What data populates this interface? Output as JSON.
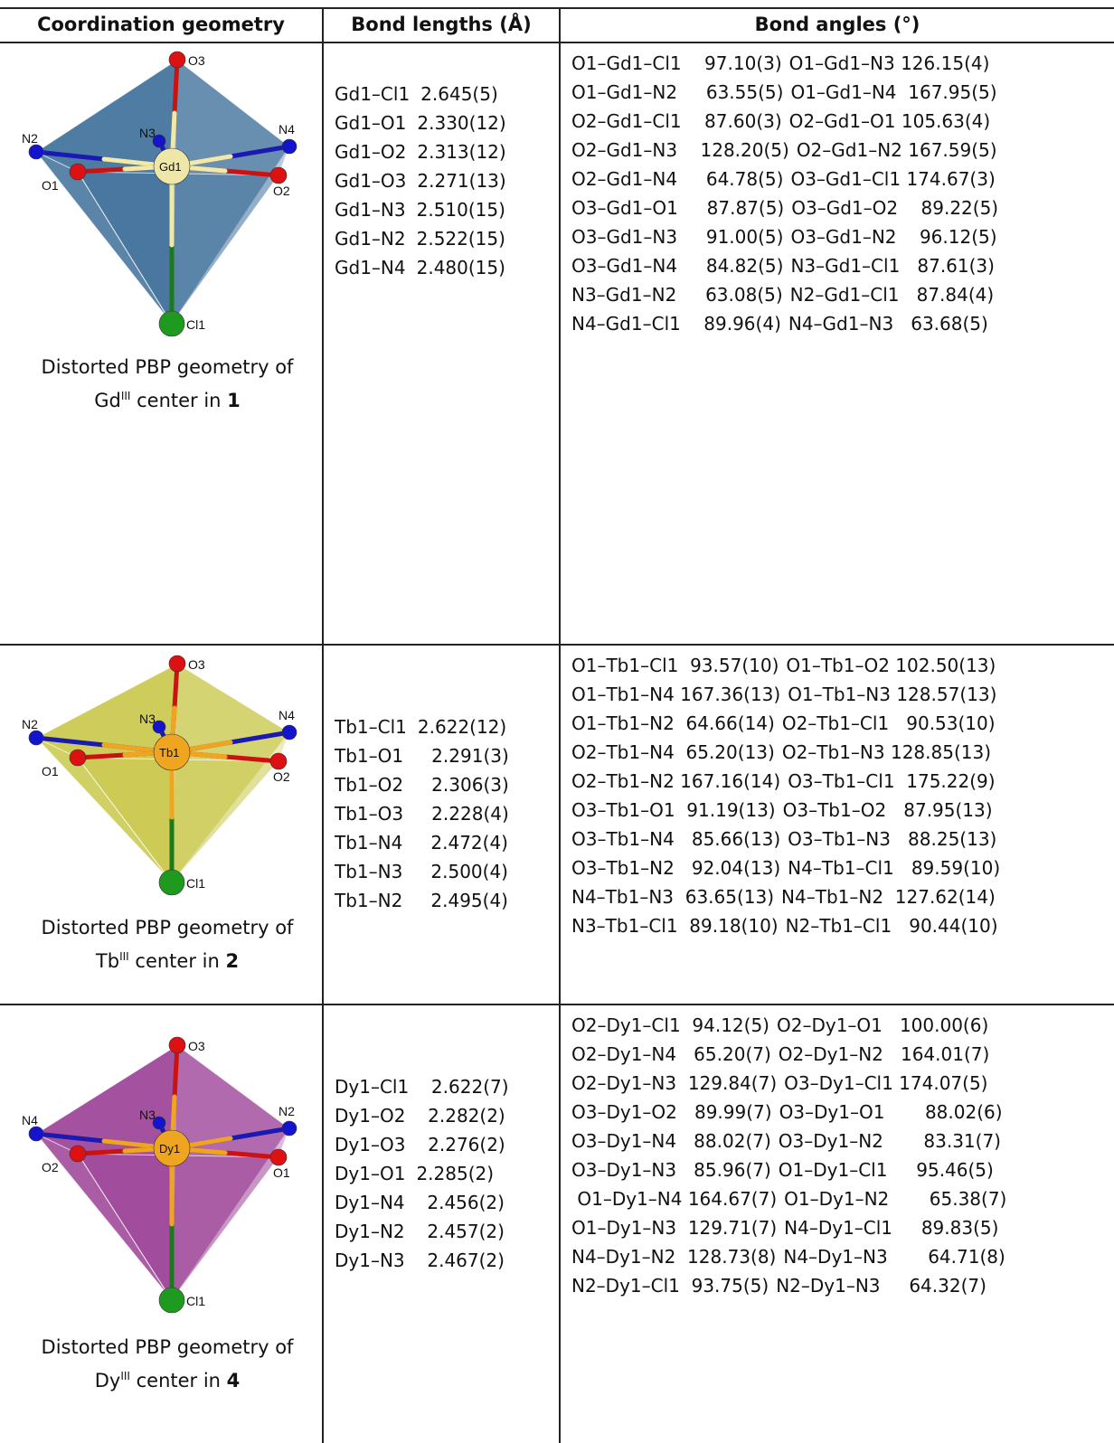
{
  "headers": {
    "coordination_geometry": "Coordination geometry",
    "bond_lengths": "Bond lengths (Å)",
    "bond_angles": "Bond angles (°)"
  },
  "rows": [
    {
      "caption_line1": "Distorted PBP geometry of",
      "caption_metal": "Gd",
      "caption_sup": "III",
      "caption_mid": " center in ",
      "caption_compound": "1",
      "figure": {
        "center_label": "Gd1",
        "poly_color": "#3d6e99",
        "center_color": "#efe7a8",
        "bond_color": "#f2e9a6",
        "labels": {
          "top": "O3",
          "bottom": "Cl1",
          "left_n": "N2",
          "mid_n": "N3",
          "right_n": "N4",
          "left_o": "O1",
          "right_o": "O2"
        }
      },
      "bond_lengths": [
        {
          "bond": "Gd1–Cl1",
          "value": "2.645(5)"
        },
        {
          "bond": "Gd1–O1",
          "value": "2.330(12)"
        },
        {
          "bond": "Gd1–O2",
          "value": "2.313(12)"
        },
        {
          "bond": "Gd1–O3",
          "value": "2.271(13)"
        },
        {
          "bond": "Gd1–N3",
          "value": "2.510(15)"
        },
        {
          "bond": "Gd1–N2",
          "value": "2.522(15)"
        },
        {
          "bond": "Gd1–N4",
          "value": "2.480(15)"
        }
      ],
      "bond_angles": [
        {
          "a": "O1–Gd1–Cl1    97.10(3)",
          "b": "O1–Gd1–N3 126.15(4)"
        },
        {
          "a": "O1–Gd1–N2     63.55(5)",
          "b": "O1–Gd1–N4  167.95(5)"
        },
        {
          "a": "O2–Gd1–Cl1    87.60(3)",
          "b": "O2–Gd1–O1 105.63(4)"
        },
        {
          "a": "O2–Gd1–N3    128.20(5)",
          "b": "O2–Gd1–N2 167.59(5)"
        },
        {
          "a": "O2–Gd1–N4     64.78(5)",
          "b": "O3–Gd1–Cl1 174.67(3)"
        },
        {
          "a": "O3–Gd1–O1     87.87(5)",
          "b": "O3–Gd1–O2    89.22(5)"
        },
        {
          "a": "O3–Gd1–N3     91.00(5)",
          "b": "O3–Gd1–N2    96.12(5)"
        },
        {
          "a": "O3–Gd1–N4     84.82(5)",
          "b": "N3–Gd1–Cl1   87.61(3)"
        },
        {
          "a": "N3–Gd1–N2     63.08(5)",
          "b": "N2–Gd1–Cl1   87.84(4)"
        },
        {
          "a": "N4–Gd1–Cl1    89.96(4)",
          "b": "N4–Gd1–N3   63.68(5)"
        }
      ]
    },
    {
      "caption_line1": "Distorted PBP geometry of",
      "caption_metal": "Tb",
      "caption_sup": "III",
      "caption_mid": " center in ",
      "caption_compound": "2",
      "figure": {
        "center_label": "Tb1",
        "poly_color": "#c9c84a",
        "center_color": "#f0a520",
        "bond_color": "#f0a520",
        "labels": {
          "top": "O3",
          "bottom": "Cl1",
          "left_n": "N2",
          "mid_n": "N3",
          "right_n": "N4",
          "left_o": "O1",
          "right_o": "O2"
        }
      },
      "bond_lengths": [
        {
          "bond": "Tb1–Cl1",
          "value": "2.622(12)"
        },
        {
          "bond": "Tb1–O1",
          "value": "   2.291(3)"
        },
        {
          "bond": "Tb1–O2",
          "value": "   2.306(3)"
        },
        {
          "bond": "Tb1–O3",
          "value": "   2.228(4)"
        },
        {
          "bond": "Tb1–N4",
          "value": "   2.472(4)"
        },
        {
          "bond": "Tb1–N3",
          "value": "   2.500(4)"
        },
        {
          "bond": "Tb1–N2",
          "value": "   2.495(4)"
        }
      ],
      "bond_angles": [
        {
          "a": "O1–Tb1–Cl1  93.57(10)",
          "b": "O1–Tb1–O2 102.50(13)"
        },
        {
          "a": "O1–Tb1–N4 167.36(13)",
          "b": "O1–Tb1–N3 128.57(13)"
        },
        {
          "a": "O1–Tb1–N2  64.66(14)",
          "b": "O2–Tb1–Cl1   90.53(10)"
        },
        {
          "a": "O2–Tb1–N4  65.20(13)",
          "b": "O2–Tb1–N3 128.85(13)"
        },
        {
          "a": "O2–Tb1–N2 167.16(14)",
          "b": "O3–Tb1–Cl1  175.22(9)"
        },
        {
          "a": "O3–Tb1–O1  91.19(13)",
          "b": "O3–Tb1–O2   87.95(13)"
        },
        {
          "a": "O3–Tb1–N4   85.66(13)",
          "b": "O3–Tb1–N3   88.25(13)"
        },
        {
          "a": "O3–Tb1–N2   92.04(13)",
          "b": "N4–Tb1–Cl1   89.59(10)"
        },
        {
          "a": "N4–Tb1–N3  63.65(13)",
          "b": "N4–Tb1–N2  127.62(14)"
        },
        {
          "a": "N3–Tb1–Cl1  89.18(10)",
          "b": "N2–Tb1–Cl1   90.44(10)"
        }
      ]
    },
    {
      "caption_line1": "Distorted PBP geometry of",
      "caption_metal": "Dy",
      "caption_sup": "III",
      "caption_mid": " center in ",
      "caption_compound": "4",
      "figure": {
        "center_label": "Dy1",
        "poly_color": "#9b3f95",
        "center_color": "#f0a520",
        "bond_color": "#f0a520",
        "labels": {
          "top": "O3",
          "bottom": "Cl1",
          "left_n": "N4",
          "mid_n": "N3",
          "right_n": "N2",
          "left_o": "O2",
          "right_o": "O1"
        }
      },
      "bond_lengths": [
        {
          "bond": "Dy1–Cl1",
          "value": "  2.622(7)"
        },
        {
          "bond": "Dy1–O2",
          "value": "  2.282(2)"
        },
        {
          "bond": "Dy1–O3",
          "value": "  2.276(2)"
        },
        {
          "bond": "Dy1–O1",
          "value": "2.285(2)"
        },
        {
          "bond": "Dy1–N4",
          "value": "  2.456(2)"
        },
        {
          "bond": "Dy1–N2",
          "value": "  2.457(2)"
        },
        {
          "bond": "Dy1–N3",
          "value": "  2.467(2)"
        }
      ],
      "bond_angles": [
        {
          "a": "O2–Dy1–Cl1  94.12(5)",
          "b": "O2–Dy1–O1   100.00(6)"
        },
        {
          "a": "O2–Dy1–N4   65.20(7)",
          "b": "O2–Dy1–N2   164.01(7)"
        },
        {
          "a": "O2–Dy1–N3  129.84(7)",
          "b": "O3–Dy1–Cl1 174.07(5)"
        },
        {
          "a": "O3–Dy1–O2   89.99(7)",
          "b": "O3–Dy1–O1       88.02(6)"
        },
        {
          "a": "O3–Dy1–N4   88.02(7)",
          "b": "O3–Dy1–N2       83.31(7)"
        },
        {
          "a": "O3–Dy1–N3   85.96(7)",
          "b": "O1–Dy1–Cl1     95.46(5)"
        },
        {
          "a": " O1–Dy1–N4 164.67(7)",
          "b": "O1–Dy1–N2       65.38(7)"
        },
        {
          "a": "O1–Dy1–N3  129.71(7)",
          "b": "N4–Dy1–Cl1     89.83(5)"
        },
        {
          "a": "N4–Dy1–N2  128.73(8)",
          "b": "N4–Dy1–N3       64.71(8)"
        },
        {
          "a": "N2–Dy1–Cl1  93.75(5)",
          "b": "N2–Dy1–N3     64.32(7)"
        }
      ]
    }
  ]
}
